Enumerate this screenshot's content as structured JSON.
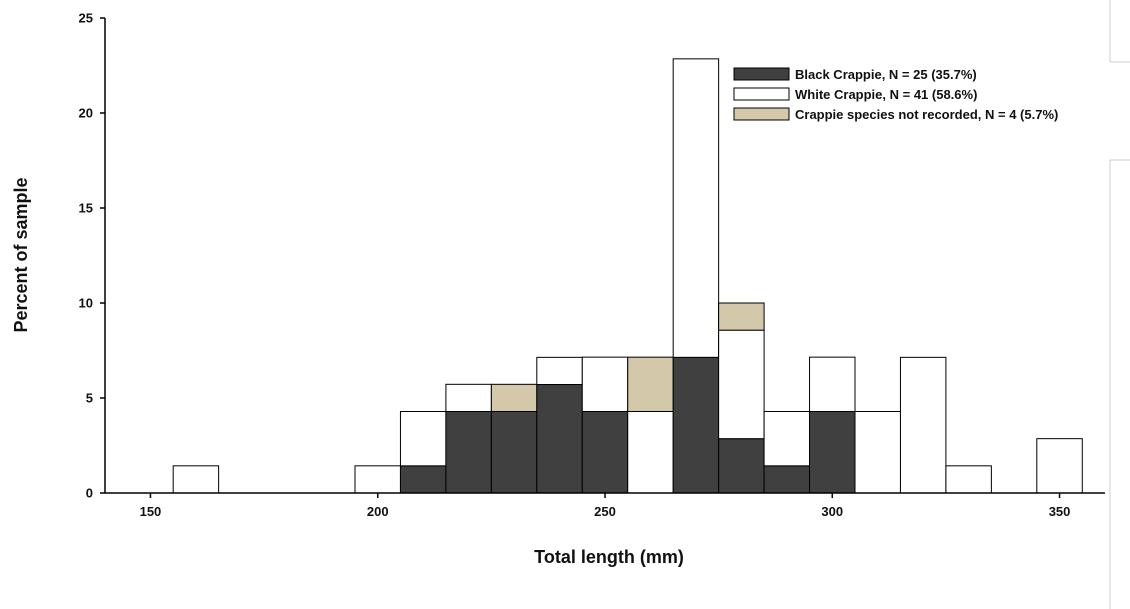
{
  "chart_data": {
    "type": "bar",
    "stacked": true,
    "xlabel": "Total length (mm)",
    "ylabel": "Percent of sample",
    "xlim": [
      140,
      360
    ],
    "ylim": [
      0,
      25
    ],
    "x_ticks": [
      150,
      200,
      250,
      300,
      350
    ],
    "y_ticks": [
      0,
      5,
      10,
      15,
      20,
      25
    ],
    "bin_width": 10,
    "categories": [
      160,
      200,
      210,
      220,
      230,
      240,
      250,
      260,
      270,
      280,
      290,
      300,
      310,
      320,
      330,
      350
    ],
    "series": [
      {
        "name": "Black Crappie, N = 25 (35.7%)",
        "color": "#404040",
        "values": [
          0,
          0,
          1.43,
          4.29,
          4.29,
          5.71,
          4.29,
          0,
          7.14,
          2.86,
          1.43,
          4.29,
          0,
          0,
          0,
          0
        ]
      },
      {
        "name": "White Crappie, N = 41 (58.6%)",
        "color": "#ffffff",
        "values": [
          1.43,
          1.43,
          2.86,
          1.43,
          0,
          1.43,
          2.86,
          4.29,
          15.71,
          5.71,
          2.86,
          2.86,
          4.29,
          7.14,
          1.43,
          2.86
        ]
      },
      {
        "name": "Crappie species not recorded, N = 4 (5.7%)",
        "color": "#d3c9aa",
        "values": [
          0,
          0,
          0,
          0,
          1.43,
          0,
          0,
          2.86,
          0,
          1.43,
          0,
          0,
          0,
          0,
          0,
          0
        ]
      }
    ],
    "legend_position": "top-right",
    "grid": false
  }
}
